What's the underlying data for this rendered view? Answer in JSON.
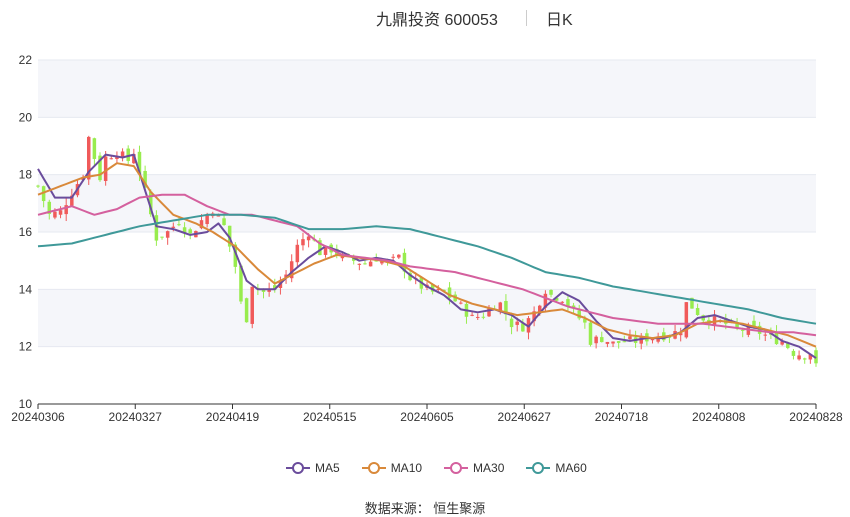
{
  "header": {
    "title": "九鼎投资 600053",
    "period": "日K"
  },
  "source": "数据来源： 恒生聚源",
  "colors": {
    "up": "#f05a5a",
    "down": "#98ec4e",
    "grid": "#e6e9f0",
    "band": "#f5f6fa",
    "axis": "#333333"
  },
  "chart_data": {
    "type": "candlestick",
    "ylim": [
      10,
      22
    ],
    "yticks": [
      10,
      12,
      14,
      16,
      18,
      20,
      22
    ],
    "xticks": [
      "20240306",
      "20240327",
      "20240419",
      "20240515",
      "20240605",
      "20240627",
      "20240718",
      "20240808",
      "20240828"
    ],
    "series": [
      {
        "name": "MA5",
        "color": "#6a4c9c",
        "key": "ma5"
      },
      {
        "name": "MA10",
        "color": "#d9893a",
        "key": "ma10"
      },
      {
        "name": "MA30",
        "color": "#d4609e",
        "key": "ma30"
      },
      {
        "name": "MA60",
        "color": "#3f9999",
        "key": "ma60"
      }
    ],
    "ma_anchors": {
      "ma5": [
        [
          0,
          18.2
        ],
        [
          3,
          17.2
        ],
        [
          6,
          17.2
        ],
        [
          9,
          18.1
        ],
        [
          12,
          18.7
        ],
        [
          15,
          18.6
        ],
        [
          17,
          18.7
        ],
        [
          21,
          16.2
        ],
        [
          24,
          16.1
        ],
        [
          27,
          15.9
        ],
        [
          30,
          16.0
        ],
        [
          32,
          16.3
        ],
        [
          34,
          15.8
        ],
        [
          37,
          14.3
        ],
        [
          39,
          14.0
        ],
        [
          42,
          14.0
        ],
        [
          45,
          14.6
        ],
        [
          48,
          15.1
        ],
        [
          51,
          15.5
        ],
        [
          54,
          15.3
        ],
        [
          57,
          15.0
        ],
        [
          60,
          15.1
        ],
        [
          63,
          15.0
        ],
        [
          66,
          14.5
        ],
        [
          69,
          14.1
        ],
        [
          72,
          13.8
        ],
        [
          75,
          13.3
        ],
        [
          78,
          13.2
        ],
        [
          81,
          13.3
        ],
        [
          84,
          13.1
        ],
        [
          87,
          12.7
        ],
        [
          90,
          13.4
        ],
        [
          93,
          13.9
        ],
        [
          96,
          13.6
        ],
        [
          99,
          12.9
        ],
        [
          102,
          12.3
        ],
        [
          105,
          12.2
        ],
        [
          108,
          12.3
        ],
        [
          111,
          12.3
        ],
        [
          114,
          12.5
        ],
        [
          117,
          13.0
        ],
        [
          120,
          13.1
        ],
        [
          123,
          12.9
        ],
        [
          126,
          12.7
        ],
        [
          129,
          12.6
        ],
        [
          132,
          12.2
        ],
        [
          135,
          12.0
        ],
        [
          138,
          11.6
        ]
      ],
      "ma10": [
        [
          0,
          17.3
        ],
        [
          4,
          17.6
        ],
        [
          8,
          17.9
        ],
        [
          11,
          18.0
        ],
        [
          14,
          18.4
        ],
        [
          17,
          18.3
        ],
        [
          20,
          17.4
        ],
        [
          24,
          16.6
        ],
        [
          28,
          16.3
        ],
        [
          31,
          16.0
        ],
        [
          35,
          15.5
        ],
        [
          39,
          14.7
        ],
        [
          42,
          14.2
        ],
        [
          45,
          14.5
        ],
        [
          49,
          14.9
        ],
        [
          53,
          15.2
        ],
        [
          57,
          15.1
        ],
        [
          61,
          15.0
        ],
        [
          65,
          14.8
        ],
        [
          69,
          14.3
        ],
        [
          73,
          13.8
        ],
        [
          77,
          13.5
        ],
        [
          81,
          13.3
        ],
        [
          85,
          13.1
        ],
        [
          89,
          13.2
        ],
        [
          93,
          13.3
        ],
        [
          97,
          13.0
        ],
        [
          101,
          12.6
        ],
        [
          105,
          12.4
        ],
        [
          109,
          12.3
        ],
        [
          113,
          12.4
        ],
        [
          117,
          12.8
        ],
        [
          121,
          12.9
        ],
        [
          125,
          12.8
        ],
        [
          129,
          12.6
        ],
        [
          133,
          12.4
        ],
        [
          138,
          12.0
        ]
      ],
      "ma30": [
        [
          0,
          16.6
        ],
        [
          6,
          16.9
        ],
        [
          10,
          16.6
        ],
        [
          14,
          16.8
        ],
        [
          18,
          17.2
        ],
        [
          22,
          17.3
        ],
        [
          26,
          17.3
        ],
        [
          30,
          16.9
        ],
        [
          34,
          16.6
        ],
        [
          38,
          16.6
        ],
        [
          42,
          16.4
        ],
        [
          46,
          16.2
        ],
        [
          50,
          15.6
        ],
        [
          54,
          15.2
        ],
        [
          58,
          15.1
        ],
        [
          62,
          15.0
        ],
        [
          66,
          14.8
        ],
        [
          70,
          14.7
        ],
        [
          74,
          14.6
        ],
        [
          78,
          14.4
        ],
        [
          82,
          14.2
        ],
        [
          86,
          14.0
        ],
        [
          90,
          13.7
        ],
        [
          94,
          13.4
        ],
        [
          98,
          13.2
        ],
        [
          102,
          13.0
        ],
        [
          106,
          12.9
        ],
        [
          110,
          12.8
        ],
        [
          114,
          12.8
        ],
        [
          118,
          12.8
        ],
        [
          122,
          12.7
        ],
        [
          126,
          12.6
        ],
        [
          130,
          12.5
        ],
        [
          134,
          12.5
        ],
        [
          138,
          12.4
        ]
      ],
      "ma60": [
        [
          0,
          15.5
        ],
        [
          6,
          15.6
        ],
        [
          12,
          15.9
        ],
        [
          18,
          16.2
        ],
        [
          24,
          16.4
        ],
        [
          30,
          16.6
        ],
        [
          36,
          16.6
        ],
        [
          42,
          16.5
        ],
        [
          48,
          16.1
        ],
        [
          54,
          16.1
        ],
        [
          60,
          16.2
        ],
        [
          66,
          16.1
        ],
        [
          72,
          15.8
        ],
        [
          78,
          15.5
        ],
        [
          84,
          15.1
        ],
        [
          90,
          14.6
        ],
        [
          96,
          14.4
        ],
        [
          102,
          14.1
        ],
        [
          108,
          13.9
        ],
        [
          114,
          13.7
        ],
        [
          120,
          13.5
        ],
        [
          126,
          13.3
        ],
        [
          132,
          13.0
        ],
        [
          138,
          12.8
        ]
      ]
    },
    "candle_anchors": [
      [
        0,
        17.6
      ],
      [
        2,
        16.6
      ],
      [
        4,
        16.7
      ],
      [
        6,
        17.4
      ],
      [
        8,
        18.0
      ],
      [
        9,
        19.3
      ],
      [
        11,
        17.9
      ],
      [
        12,
        18.6
      ],
      [
        14,
        18.8
      ],
      [
        16,
        18.5
      ],
      [
        17,
        18.8
      ],
      [
        19,
        17.4
      ],
      [
        20,
        16.6
      ],
      [
        21,
        15.8
      ],
      [
        23,
        16.0
      ],
      [
        25,
        16.4
      ],
      [
        27,
        15.9
      ],
      [
        29,
        16.4
      ],
      [
        31,
        16.8
      ],
      [
        33,
        16.2
      ],
      [
        35,
        14.8
      ],
      [
        36,
        13.5
      ],
      [
        37,
        13.0
      ],
      [
        38,
        14.2
      ],
      [
        40,
        13.9
      ],
      [
        42,
        14.0
      ],
      [
        44,
        14.5
      ],
      [
        46,
        15.5
      ],
      [
        48,
        16.0
      ],
      [
        50,
        15.3
      ],
      [
        52,
        15.4
      ],
      [
        54,
        15.1
      ],
      [
        56,
        15.0
      ],
      [
        58,
        14.9
      ],
      [
        60,
        15.1
      ],
      [
        62,
        14.9
      ],
      [
        64,
        15.1
      ],
      [
        66,
        14.4
      ],
      [
        68,
        14.1
      ],
      [
        70,
        13.9
      ],
      [
        72,
        13.9
      ],
      [
        74,
        13.6
      ],
      [
        76,
        13.2
      ],
      [
        77,
        13.0
      ],
      [
        79,
        13.1
      ],
      [
        81,
        13.5
      ],
      [
        82,
        13.5
      ],
      [
        84,
        12.8
      ],
      [
        86,
        12.7
      ],
      [
        88,
        13.2
      ],
      [
        90,
        14.0
      ],
      [
        91,
        13.8
      ],
      [
        93,
        13.7
      ],
      [
        95,
        13.2
      ],
      [
        97,
        12.8
      ],
      [
        98,
        12.2
      ],
      [
        100,
        12.3
      ],
      [
        102,
        12.1
      ],
      [
        104,
        12.2
      ],
      [
        106,
        12.2
      ],
      [
        108,
        12.3
      ],
      [
        110,
        12.4
      ],
      [
        112,
        12.4
      ],
      [
        114,
        12.6
      ],
      [
        115,
        13.5
      ],
      [
        116,
        13.4
      ],
      [
        118,
        13.0
      ],
      [
        120,
        12.9
      ],
      [
        122,
        12.8
      ],
      [
        124,
        12.6
      ],
      [
        126,
        12.6
      ],
      [
        128,
        12.5
      ],
      [
        130,
        12.3
      ],
      [
        132,
        12.2
      ],
      [
        134,
        11.8
      ],
      [
        136,
        11.7
      ],
      [
        137,
        11.8
      ],
      [
        138,
        11.3
      ]
    ]
  }
}
